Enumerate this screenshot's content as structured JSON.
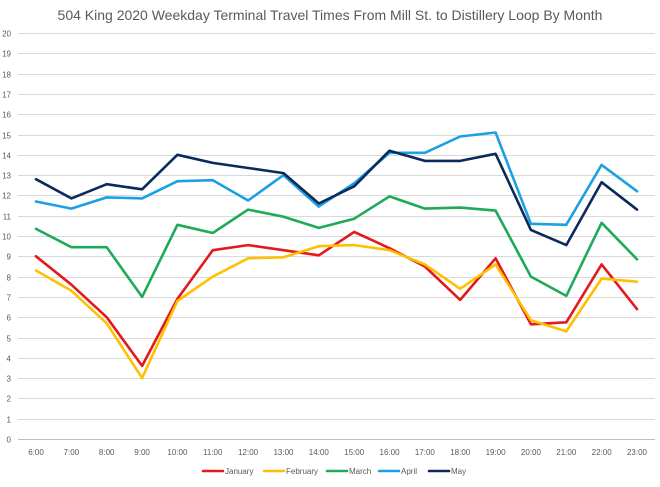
{
  "chart_data": {
    "type": "line",
    "title": "504 King 2020 Weekday Terminal Travel Times From Mill St. to Distillery Loop By Month",
    "xlabel": "",
    "ylabel": "",
    "ylim": [
      0,
      20
    ],
    "y_ticks": [
      0,
      1,
      2,
      3,
      4,
      5,
      6,
      7,
      8,
      9,
      10,
      11,
      12,
      13,
      14,
      15,
      16,
      17,
      18,
      19,
      20
    ],
    "grid": true,
    "legend_position": "bottom",
    "categories": [
      "6:00",
      "7:00",
      "8:00",
      "9:00",
      "10:00",
      "11:00",
      "12:00",
      "13:00",
      "14:00",
      "15:00",
      "16:00",
      "17:00",
      "18:00",
      "19:00",
      "20:00",
      "21:00",
      "22:00",
      "23:00"
    ],
    "series": [
      {
        "name": "January",
        "color": "#E31A1C",
        "values": [
          9.0,
          7.6,
          6.0,
          3.6,
          6.9,
          9.3,
          9.55,
          9.3,
          9.05,
          10.2,
          9.4,
          8.5,
          6.85,
          8.9,
          5.65,
          5.75,
          8.6,
          6.4
        ]
      },
      {
        "name": "February",
        "color": "#FFC000",
        "values": [
          8.3,
          7.3,
          5.7,
          3.0,
          6.8,
          8.0,
          8.9,
          8.95,
          9.5,
          9.55,
          9.3,
          8.6,
          7.4,
          8.6,
          5.85,
          5.3,
          7.9,
          7.75
        ]
      },
      {
        "name": "March",
        "color": "#1FAA59",
        "values": [
          10.35,
          9.45,
          9.45,
          7.0,
          10.55,
          10.15,
          11.3,
          10.95,
          10.4,
          10.85,
          11.95,
          11.35,
          11.4,
          11.25,
          8.0,
          7.05,
          10.65,
          8.85
        ]
      },
      {
        "name": "April",
        "color": "#1BA1E2",
        "values": [
          11.7,
          11.35,
          11.9,
          11.85,
          12.7,
          12.75,
          11.75,
          13.0,
          11.45,
          12.6,
          14.1,
          14.1,
          14.9,
          15.1,
          10.6,
          10.55,
          13.5,
          12.2
        ]
      },
      {
        "name": "May",
        "color": "#0B2A5B",
        "values": [
          12.8,
          11.85,
          12.55,
          12.3,
          14.0,
          13.6,
          13.35,
          13.1,
          11.6,
          12.45,
          14.2,
          13.7,
          13.7,
          14.05,
          10.3,
          9.55,
          12.65,
          11.3
        ]
      }
    ]
  }
}
